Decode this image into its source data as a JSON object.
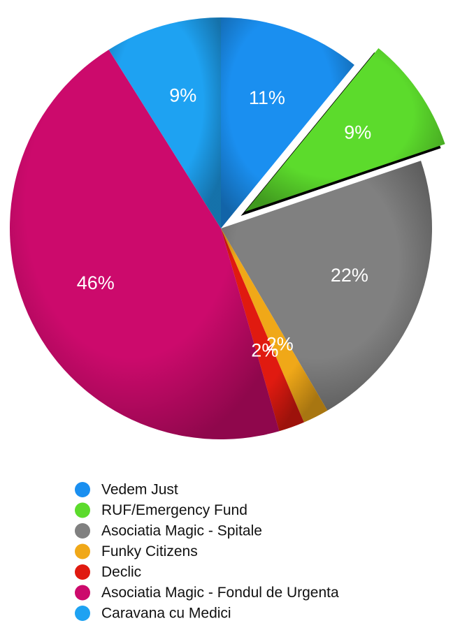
{
  "chart_data": {
    "type": "pie",
    "categories": [
      "Vedem Just",
      "RUF/Emergency Fund",
      "Asociatia Magic - Spitale",
      "Funky Citizens",
      "Declic",
      "Asociatia Magic - Fondul de Urgenta",
      "Caravana cu Medici"
    ],
    "values": [
      11,
      9,
      22,
      2,
      2,
      46,
      9
    ],
    "value_labels": [
      "11%",
      "9%",
      "22%",
      "2%",
      "2%",
      "46%",
      "9%"
    ],
    "colors": [
      "#1a8ff0",
      "#5cdb2c",
      "#808080",
      "#f0a818",
      "#e01a10",
      "#cc0a6c",
      "#1ea2f2"
    ],
    "exploded": [
      1
    ]
  }
}
